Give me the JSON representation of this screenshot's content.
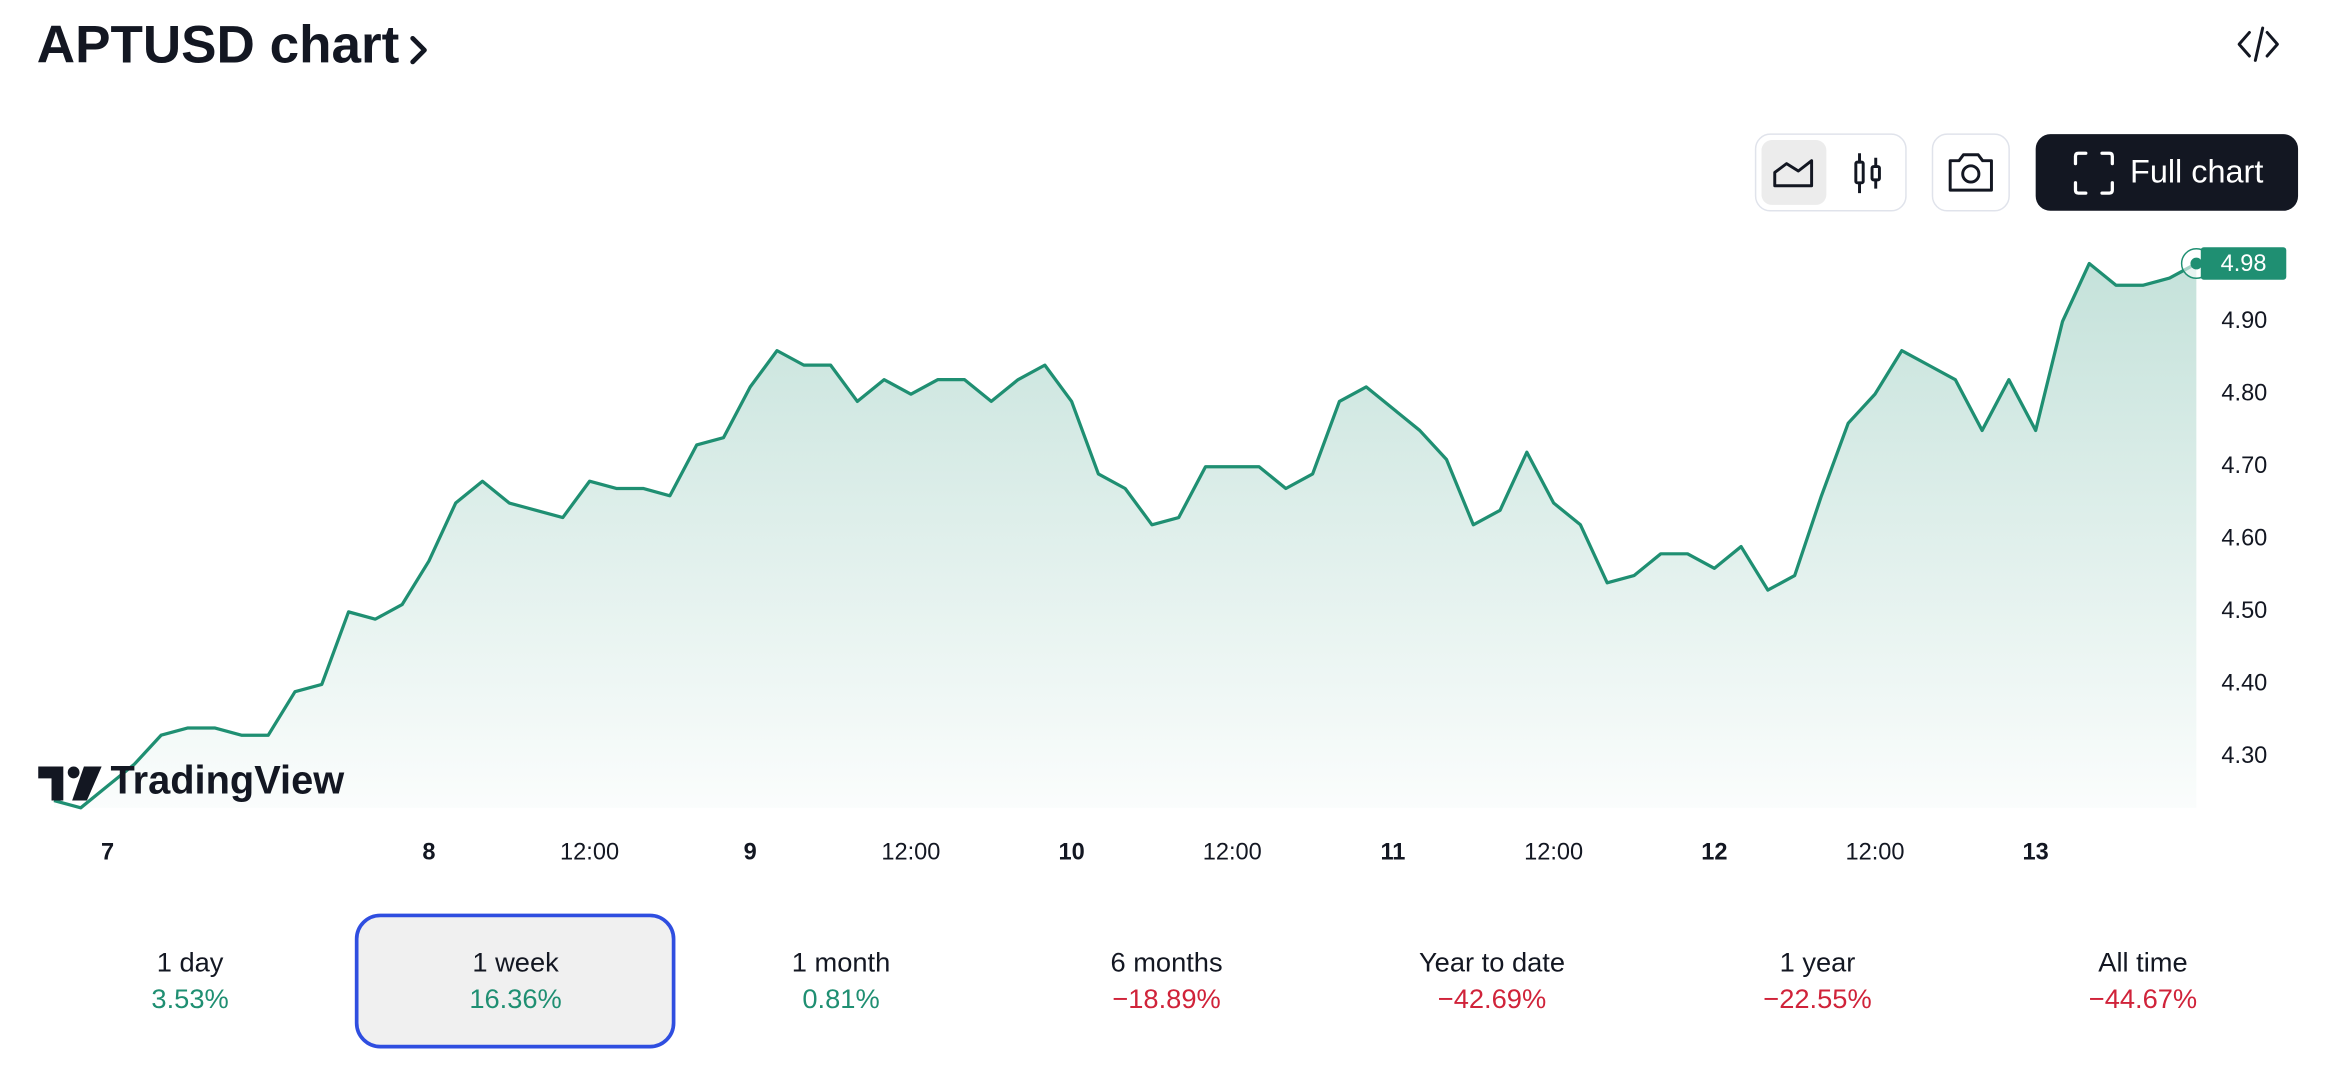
{
  "header": {
    "title": "APTUSD chart"
  },
  "toolbar": {
    "full_chart": "Full chart"
  },
  "chart_data": {
    "type": "area",
    "color": "#1f8f72",
    "watermark": "TradingView",
    "ylim": [
      4.23,
      5.01
    ],
    "yticks": [
      {
        "value": 4.3,
        "label": "4.30"
      },
      {
        "value": 4.4,
        "label": "4.40"
      },
      {
        "value": 4.5,
        "label": "4.50"
      },
      {
        "value": 4.6,
        "label": "4.60"
      },
      {
        "value": 4.7,
        "label": "4.70"
      },
      {
        "value": 4.8,
        "label": "4.80"
      },
      {
        "value": 4.9,
        "label": "4.90"
      }
    ],
    "categories": [
      null,
      null,
      "7",
      null,
      null,
      null,
      null,
      null,
      null,
      null,
      null,
      null,
      null,
      null,
      "8",
      null,
      null,
      null,
      null,
      null,
      "12:00",
      null,
      null,
      null,
      null,
      null,
      "9",
      null,
      null,
      null,
      null,
      null,
      "12:00",
      null,
      null,
      null,
      null,
      null,
      "10",
      null,
      null,
      null,
      null,
      null,
      "12:00",
      null,
      null,
      null,
      null,
      null,
      "11",
      null,
      null,
      null,
      null,
      null,
      "12:00",
      null,
      null,
      null,
      null,
      null,
      "12",
      null,
      null,
      null,
      null,
      null,
      "12:00",
      null,
      null,
      null,
      null,
      null,
      "13",
      null,
      null,
      null,
      null,
      null,
      null
    ],
    "values": [
      4.24,
      4.23,
      4.26,
      4.29,
      4.33,
      4.34,
      4.34,
      4.33,
      4.33,
      4.39,
      4.4,
      4.5,
      4.49,
      4.51,
      4.57,
      4.65,
      4.68,
      4.65,
      4.64,
      4.63,
      4.68,
      4.67,
      4.67,
      4.66,
      4.73,
      4.74,
      4.81,
      4.86,
      4.84,
      4.84,
      4.79,
      4.82,
      4.8,
      4.82,
      4.82,
      4.79,
      4.82,
      4.84,
      4.79,
      4.69,
      4.67,
      4.62,
      4.63,
      4.7,
      4.7,
      4.7,
      4.67,
      4.69,
      4.79,
      4.81,
      4.78,
      4.75,
      4.71,
      4.62,
      4.64,
      4.72,
      4.65,
      4.62,
      4.54,
      4.55,
      4.58,
      4.58,
      4.56,
      4.59,
      4.53,
      4.55,
      4.66,
      4.76,
      4.8,
      4.86,
      4.84,
      4.82,
      4.75,
      4.82,
      4.75,
      4.9,
      4.98,
      4.95,
      4.95,
      4.96,
      4.98
    ]
  },
  "periods": [
    {
      "label": "1 day",
      "change": "3.53%"
    },
    {
      "label": "1 week",
      "change": "16.36%"
    },
    {
      "label": "1 month",
      "change": "0.81%"
    },
    {
      "label": "6 months",
      "change": "−18.89%"
    },
    {
      "label": "Year to date",
      "change": "−42.69%"
    },
    {
      "label": "1 year",
      "change": "−22.55%"
    },
    {
      "label": "All time",
      "change": "−44.67%"
    }
  ]
}
